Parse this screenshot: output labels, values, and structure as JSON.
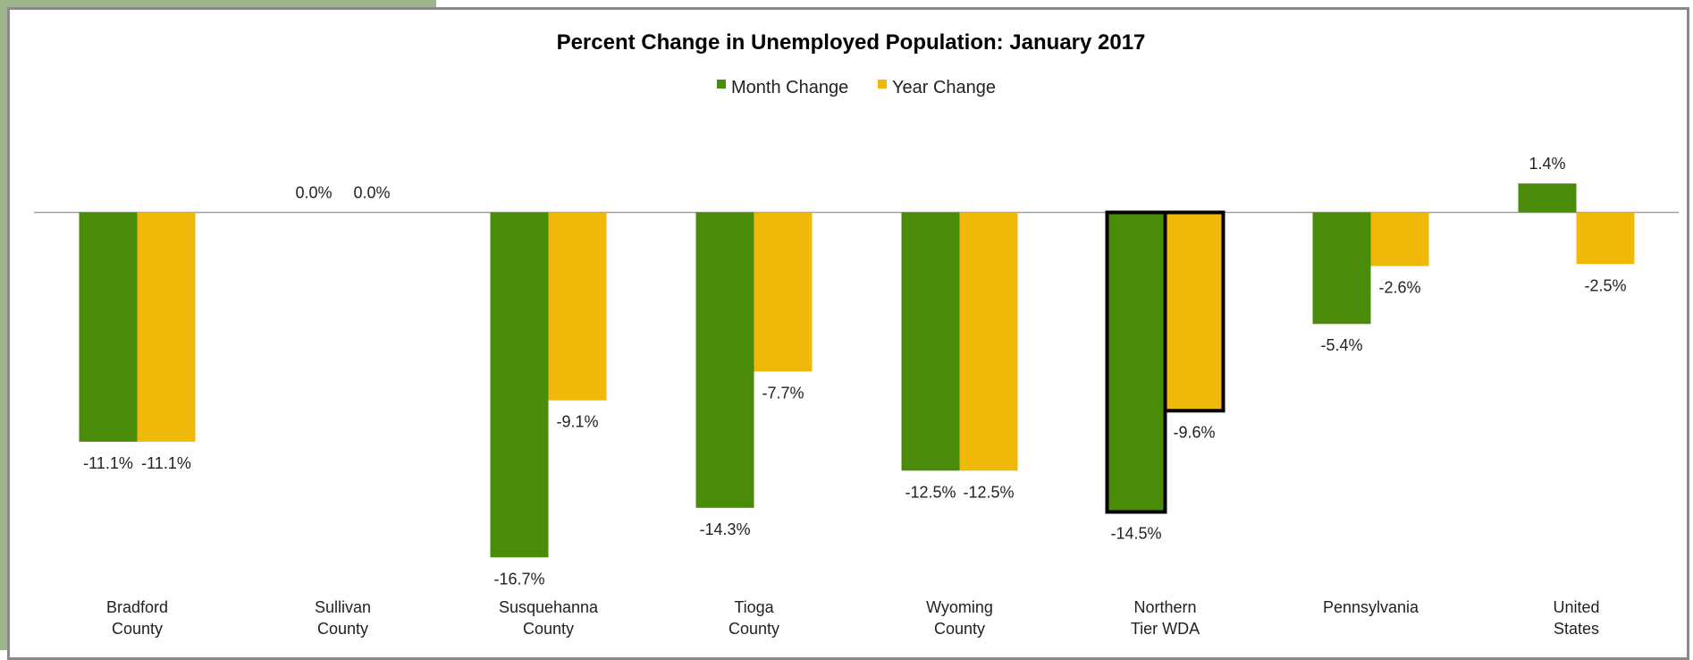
{
  "chart_data": {
    "type": "bar",
    "title": "Percent Change in Unemployed Population: January 2017",
    "categories": [
      [
        "Bradford",
        "County"
      ],
      [
        "Sullivan",
        "County"
      ],
      [
        "Susquehanna",
        "County"
      ],
      [
        "Tioga",
        "County"
      ],
      [
        "Wyoming",
        "County"
      ],
      [
        "Northern",
        "Tier WDA"
      ],
      [
        "Pennsylvania"
      ],
      [
        "United",
        "States"
      ]
    ],
    "series": [
      {
        "name": "Month Change",
        "color": "#4a8c0a",
        "values": [
          -11.1,
          0.0,
          -16.7,
          -14.3,
          -12.5,
          -14.5,
          -5.4,
          1.4
        ],
        "labels": [
          "-11.1%",
          "0.0%",
          "-16.7%",
          "-14.3%",
          "-12.5%",
          "-14.5%",
          "-5.4%",
          "1.4%"
        ]
      },
      {
        "name": "Year Change",
        "color": "#f0b90a",
        "values": [
          -11.1,
          0.0,
          -9.1,
          -7.7,
          -12.5,
          -9.6,
          -2.6,
          -2.5
        ],
        "labels": [
          "-11.1%",
          "0.0%",
          "-9.1%",
          "-7.7%",
          "-12.5%",
          "-9.6%",
          "-2.6%",
          "-2.5%"
        ]
      }
    ],
    "highlighted_category": 5,
    "legend_position": "top-center",
    "grid": false,
    "ylim": [
      -18,
      2
    ]
  }
}
